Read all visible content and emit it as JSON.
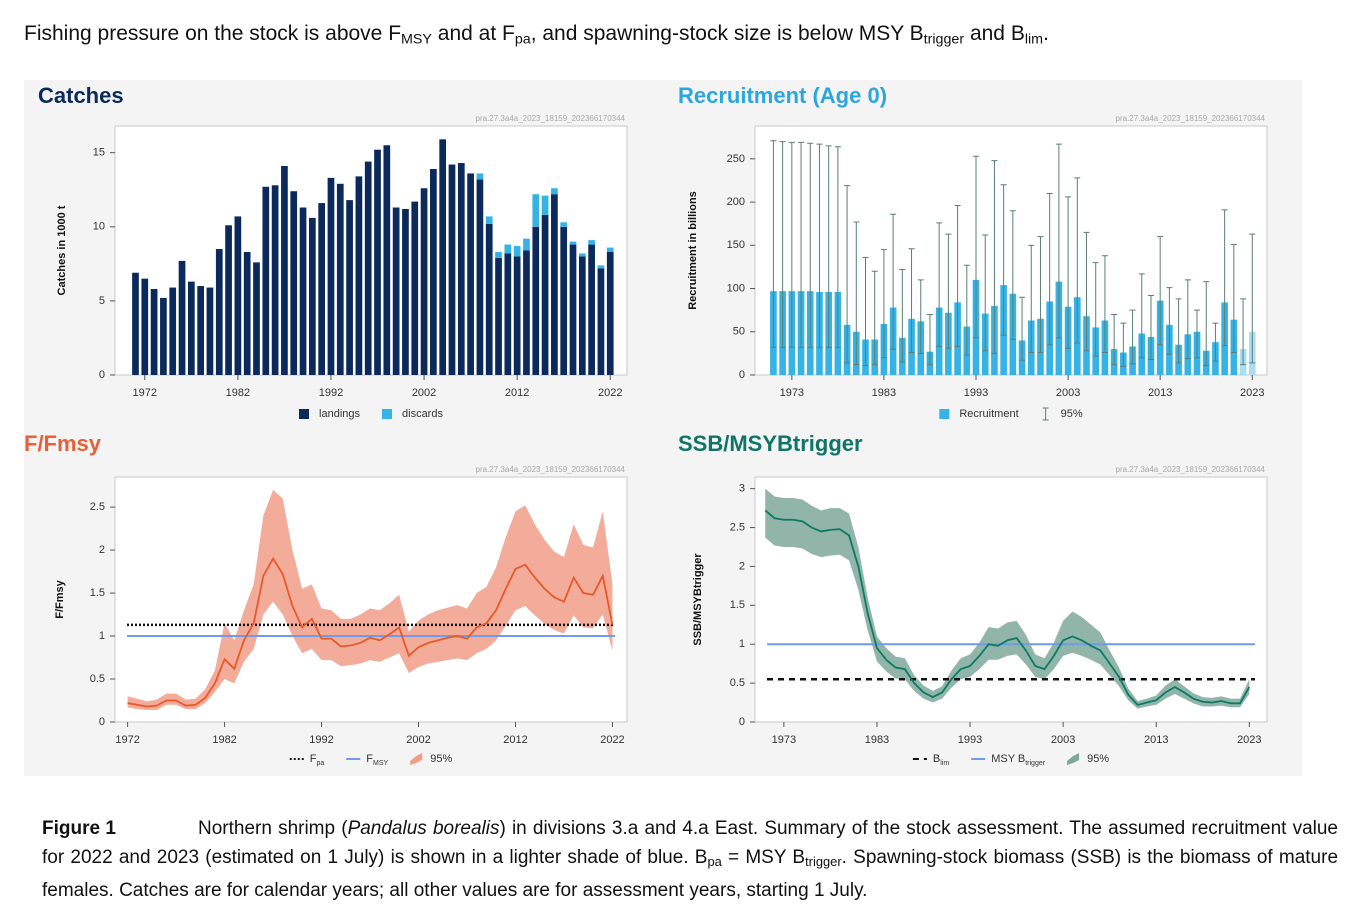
{
  "header": {
    "parts": [
      {
        "text": "Fishing pressure on the stock is above F"
      },
      {
        "text": "MSY",
        "sub": true
      },
      {
        "text": " and at F"
      },
      {
        "text": "pa",
        "sub": true
      },
      {
        "text": ", and spawning-stock size is below MSY B"
      },
      {
        "text": "trigger",
        "sub": true
      },
      {
        "text": " and B"
      },
      {
        "text": "lim",
        "sub": true
      },
      {
        "text": "."
      }
    ]
  },
  "chart_data": [
    {
      "type": "bar",
      "title": "Catches",
      "title_color": "#0b2a5b",
      "watermark": "pra.27.3a4a_2023_18159_202366170344",
      "ylabel": "Catches in 1000 t",
      "x": [
        1971,
        1972,
        1973,
        1974,
        1975,
        1976,
        1977,
        1978,
        1979,
        1980,
        1981,
        1982,
        1983,
        1984,
        1985,
        1986,
        1987,
        1988,
        1989,
        1990,
        1991,
        1992,
        1993,
        1994,
        1995,
        1996,
        1997,
        1998,
        1999,
        2000,
        2001,
        2002,
        2003,
        2004,
        2005,
        2006,
        2007,
        2008,
        2009,
        2010,
        2011,
        2012,
        2013,
        2014,
        2015,
        2016,
        2017,
        2018,
        2019,
        2020,
        2021,
        2022
      ],
      "series": [
        {
          "name": "landings",
          "color": "#0b2a5b",
          "values": [
            6.9,
            6.5,
            5.8,
            5.2,
            5.9,
            7.7,
            6.3,
            6.0,
            5.9,
            8.5,
            10.1,
            10.7,
            8.3,
            7.6,
            12.7,
            12.8,
            14.1,
            12.4,
            11.3,
            10.6,
            11.6,
            13.3,
            12.9,
            11.8,
            13.4,
            14.4,
            15.2,
            15.5,
            11.3,
            11.2,
            11.7,
            12.6,
            13.9,
            15.9,
            14.2,
            14.3,
            13.6,
            13.2,
            10.2,
            7.9,
            8.2,
            8.0,
            8.4,
            10.0,
            10.8,
            12.2,
            10.0,
            8.8,
            8.0,
            8.8,
            7.2,
            8.3
          ]
        },
        {
          "name": "discards",
          "color": "#35b3e6",
          "values": [
            0,
            0,
            0,
            0,
            0,
            0,
            0,
            0,
            0,
            0,
            0,
            0,
            0,
            0,
            0,
            0,
            0,
            0,
            0,
            0,
            0,
            0,
            0,
            0,
            0,
            0,
            0,
            0,
            0,
            0,
            0,
            0,
            0,
            0,
            0,
            0,
            0,
            0.4,
            0.5,
            0.4,
            0.6,
            0.7,
            0.8,
            2.2,
            1.3,
            0.4,
            0.3,
            0.2,
            0.2,
            0.3,
            0.2,
            0.3
          ]
        }
      ],
      "xlim": [
        1968.8,
        2023.8
      ],
      "xticks": [
        1972,
        1982,
        1992,
        2002,
        2012,
        2022
      ],
      "ylim": [
        0,
        16.8
      ],
      "yticks": [
        0,
        5,
        10,
        15
      ]
    },
    {
      "type": "bar",
      "title": "Recruitment (Age 0)",
      "title_color": "#2ba6de",
      "watermark": "pra.27.3a4a_2023_18159_202366170344",
      "ylabel": "Recruitment in billions",
      "x": [
        1971,
        1972,
        1973,
        1974,
        1975,
        1976,
        1977,
        1978,
        1979,
        1980,
        1981,
        1982,
        1983,
        1984,
        1985,
        1986,
        1987,
        1988,
        1989,
        1990,
        1991,
        1992,
        1993,
        1994,
        1995,
        1996,
        1997,
        1998,
        1999,
        2000,
        2001,
        2002,
        2003,
        2004,
        2005,
        2006,
        2007,
        2008,
        2009,
        2010,
        2011,
        2012,
        2013,
        2014,
        2015,
        2016,
        2017,
        2018,
        2019,
        2020,
        2021,
        2022,
        2023
      ],
      "series": [
        {
          "name": "Recruitment",
          "color": "#35b3e6",
          "ci_name": "95%",
          "ci_color": "#5b7f74",
          "point_colors": [
            "#35b3e6",
            "#35b3e6",
            "#35b3e6",
            "#35b3e6",
            "#35b3e6",
            "#35b3e6",
            "#35b3e6",
            "#35b3e6",
            "#35b3e6",
            "#35b3e6",
            "#35b3e6",
            "#35b3e6",
            "#35b3e6",
            "#35b3e6",
            "#35b3e6",
            "#35b3e6",
            "#35b3e6",
            "#35b3e6",
            "#35b3e6",
            "#35b3e6",
            "#35b3e6",
            "#35b3e6",
            "#35b3e6",
            "#35b3e6",
            "#35b3e6",
            "#35b3e6",
            "#35b3e6",
            "#35b3e6",
            "#35b3e6",
            "#35b3e6",
            "#35b3e6",
            "#35b3e6",
            "#35b3e6",
            "#35b3e6",
            "#35b3e6",
            "#35b3e6",
            "#35b3e6",
            "#35b3e6",
            "#35b3e6",
            "#35b3e6",
            "#35b3e6",
            "#35b3e6",
            "#35b3e6",
            "#35b3e6",
            "#35b3e6",
            "#35b3e6",
            "#35b3e6",
            "#35b3e6",
            "#35b3e6",
            "#35b3e6",
            "#35b3e6",
            "#a8ddf4",
            "#a8ddf4"
          ],
          "values": [
            97,
            97,
            97,
            97,
            97,
            96,
            96,
            96,
            58,
            50,
            41,
            41,
            59,
            78,
            43,
            65,
            62,
            27,
            78,
            72,
            84,
            56,
            110,
            71,
            80,
            104,
            94,
            40,
            63,
            65,
            85,
            108,
            79,
            90,
            68,
            55,
            63,
            30,
            26,
            33,
            48,
            44,
            86,
            58,
            35,
            47,
            50,
            28,
            38,
            84,
            64,
            30,
            50
          ],
          "upper": [
            271,
            270,
            269,
            269,
            268,
            267,
            265,
            264,
            219,
            177,
            136,
            120,
            145,
            186,
            122,
            146,
            110,
            70,
            176,
            163,
            196,
            127,
            253,
            162,
            248,
            220,
            190,
            90,
            150,
            160,
            210,
            267,
            206,
            228,
            165,
            130,
            138,
            70,
            60,
            75,
            117,
            92,
            160,
            101,
            88,
            110,
            75,
            108,
            60,
            191,
            151,
            88,
            163
          ],
          "lower": [
            32,
            32,
            32,
            32,
            32,
            32,
            32,
            32,
            14,
            12,
            11,
            12,
            20,
            30,
            15,
            26,
            25,
            12,
            33,
            31,
            33,
            23,
            43,
            28,
            25,
            46,
            41,
            17,
            26,
            26,
            35,
            43,
            31,
            37,
            28,
            22,
            26,
            12,
            10,
            13,
            20,
            18,
            35,
            24,
            14,
            19,
            20,
            11,
            16,
            34,
            26,
            12,
            14
          ]
        }
      ],
      "xlim": [
        1969,
        2024.6
      ],
      "xticks": [
        1973,
        1983,
        1993,
        2003,
        2013,
        2023
      ],
      "ylim": [
        0,
        288
      ],
      "yticks": [
        0,
        50,
        100,
        150,
        200,
        250
      ]
    },
    {
      "type": "line",
      "title": "F/Fmsy",
      "title_color": "#e8603a",
      "watermark": "pra.27.3a4a_2023_18159_202366170344",
      "ylabel": "F/Fmsy",
      "x": [
        1972,
        1973,
        1974,
        1975,
        1976,
        1977,
        1978,
        1979,
        1980,
        1981,
        1982,
        1983,
        1984,
        1985,
        1986,
        1987,
        1988,
        1989,
        1990,
        1991,
        1992,
        1993,
        1994,
        1995,
        1996,
        1997,
        1998,
        1999,
        2000,
        2001,
        2002,
        2003,
        2004,
        2005,
        2006,
        2007,
        2008,
        2009,
        2010,
        2011,
        2012,
        2013,
        2014,
        2015,
        2016,
        2017,
        2018,
        2019,
        2020,
        2021,
        2022
      ],
      "series": [
        {
          "color": "#e8592a",
          "band_name": "95%",
          "band_color": "#f19c88",
          "values": [
            0.22,
            0.2,
            0.18,
            0.19,
            0.25,
            0.25,
            0.19,
            0.2,
            0.28,
            0.45,
            0.73,
            0.62,
            0.95,
            1.15,
            1.7,
            1.9,
            1.72,
            1.35,
            1.1,
            1.2,
            0.97,
            0.97,
            0.88,
            0.89,
            0.92,
            0.98,
            0.95,
            1.02,
            1.1,
            0.77,
            0.87,
            0.92,
            0.95,
            0.98,
            1.0,
            0.97,
            1.1,
            1.15,
            1.3,
            1.55,
            1.78,
            1.83,
            1.68,
            1.55,
            1.45,
            1.4,
            1.68,
            1.5,
            1.48,
            1.7,
            1.13
          ],
          "lower": [
            0.17,
            0.15,
            0.14,
            0.14,
            0.2,
            0.2,
            0.15,
            0.15,
            0.22,
            0.35,
            0.5,
            0.45,
            0.7,
            0.85,
            1.25,
            1.4,
            1.25,
            1.0,
            0.8,
            0.85,
            0.72,
            0.72,
            0.65,
            0.66,
            0.68,
            0.72,
            0.7,
            0.75,
            0.8,
            0.57,
            0.64,
            0.68,
            0.7,
            0.72,
            0.74,
            0.72,
            0.8,
            0.85,
            0.95,
            1.12,
            1.3,
            1.35,
            1.24,
            1.14,
            1.07,
            1.03,
            1.24,
            1.1,
            1.09,
            1.25,
            0.83
          ],
          "upper": [
            0.3,
            0.27,
            0.24,
            0.26,
            0.33,
            0.33,
            0.26,
            0.27,
            0.38,
            0.6,
            1.15,
            0.95,
            1.3,
            1.6,
            2.4,
            2.7,
            2.6,
            2.0,
            1.55,
            1.6,
            1.32,
            1.3,
            1.2,
            1.2,
            1.25,
            1.32,
            1.3,
            1.38,
            1.48,
            1.05,
            1.18,
            1.25,
            1.3,
            1.33,
            1.36,
            1.32,
            1.5,
            1.57,
            1.8,
            2.15,
            2.45,
            2.52,
            2.3,
            2.12,
            1.98,
            1.92,
            2.3,
            2.06,
            2.03,
            2.45,
            1.6
          ]
        }
      ],
      "ref_lines": [
        {
          "name_parts": [
            {
              "text": "F"
            },
            {
              "text": "pa",
              "sub": true
            }
          ],
          "value": 1.13,
          "color": "#111111",
          "dash": "dotted"
        },
        {
          "name_parts": [
            {
              "text": "F"
            },
            {
              "text": "MSY",
              "sub": true
            }
          ],
          "value": 1,
          "color": "#6f9be8",
          "dash": "solid"
        }
      ],
      "xlim": [
        1970.7,
        2023.5
      ],
      "xticks": [
        1972,
        1982,
        1992,
        2002,
        2012,
        2022
      ],
      "ylim": [
        0,
        2.85
      ],
      "yticks": [
        0,
        0.5,
        1,
        1.5,
        2,
        2.5
      ]
    },
    {
      "type": "line",
      "title": "SSB/MSYBtrigger",
      "title_color": "#0f7566",
      "watermark": "pra.27.3a4a_2023_18159_202366170344",
      "ylabel": "SSB/MSYBtrigger",
      "x": [
        1971,
        1972,
        1973,
        1974,
        1975,
        1976,
        1977,
        1978,
        1979,
        1980,
        1981,
        1982,
        1983,
        1984,
        1985,
        1986,
        1987,
        1988,
        1989,
        1990,
        1991,
        1992,
        1993,
        1994,
        1995,
        1996,
        1997,
        1998,
        1999,
        2000,
        2001,
        2002,
        2003,
        2004,
        2005,
        2006,
        2007,
        2008,
        2009,
        2010,
        2011,
        2012,
        2013,
        2014,
        2015,
        2016,
        2017,
        2018,
        2019,
        2020,
        2021,
        2022,
        2023
      ],
      "series": [
        {
          "color": "#0e7a66",
          "band_name": "95%",
          "band_color": "#7ea899",
          "values": [
            2.72,
            2.62,
            2.6,
            2.6,
            2.58,
            2.5,
            2.45,
            2.47,
            2.48,
            2.4,
            2.0,
            1.4,
            0.95,
            0.8,
            0.7,
            0.68,
            0.5,
            0.38,
            0.32,
            0.38,
            0.55,
            0.68,
            0.72,
            0.85,
            1.0,
            0.98,
            1.05,
            1.08,
            0.92,
            0.72,
            0.68,
            0.85,
            1.05,
            1.1,
            1.05,
            0.98,
            0.92,
            0.75,
            0.58,
            0.35,
            0.22,
            0.25,
            0.28,
            0.38,
            0.45,
            0.38,
            0.3,
            0.26,
            0.25,
            0.27,
            0.24,
            0.24,
            0.45
          ],
          "lower": [
            2.37,
            2.27,
            2.25,
            2.25,
            2.23,
            2.16,
            2.12,
            2.14,
            2.15,
            2.08,
            1.7,
            1.18,
            0.78,
            0.65,
            0.56,
            0.55,
            0.4,
            0.3,
            0.25,
            0.3,
            0.44,
            0.55,
            0.58,
            0.68,
            0.8,
            0.8,
            0.85,
            0.87,
            0.74,
            0.58,
            0.55,
            0.68,
            0.85,
            0.89,
            0.85,
            0.8,
            0.74,
            0.6,
            0.46,
            0.28,
            0.17,
            0.2,
            0.22,
            0.3,
            0.36,
            0.3,
            0.24,
            0.2,
            0.2,
            0.21,
            0.19,
            0.19,
            0.36
          ],
          "upper": [
            3.0,
            2.9,
            2.88,
            2.88,
            2.86,
            2.78,
            2.72,
            2.75,
            2.75,
            2.68,
            2.25,
            1.6,
            1.1,
            0.95,
            0.84,
            0.82,
            0.6,
            0.47,
            0.4,
            0.46,
            0.66,
            0.82,
            0.87,
            1.02,
            1.22,
            1.2,
            1.28,
            1.3,
            1.12,
            0.87,
            0.82,
            1.02,
            1.3,
            1.42,
            1.35,
            1.25,
            1.15,
            0.92,
            0.7,
            0.43,
            0.27,
            0.3,
            0.34,
            0.47,
            0.55,
            0.46,
            0.37,
            0.32,
            0.31,
            0.33,
            0.3,
            0.3,
            0.55
          ]
        }
      ],
      "ref_lines": [
        {
          "name_parts": [
            {
              "text": "B"
            },
            {
              "text": "lim",
              "sub": true
            }
          ],
          "value": 0.55,
          "color": "#111111",
          "dash": "dashed"
        },
        {
          "name_parts": [
            {
              "text": "MSY B"
            },
            {
              "text": "trigger",
              "sub": true
            }
          ],
          "value": 1,
          "color": "#6f9be8",
          "dash": "solid"
        }
      ],
      "xlim": [
        1969.9,
        2024.9
      ],
      "xticks": [
        1973,
        1983,
        1993,
        2003,
        2013,
        2023
      ],
      "ylim": [
        0,
        3.15
      ],
      "yticks": [
        0,
        0.5,
        1,
        1.5,
        2,
        2.5,
        3
      ]
    }
  ],
  "caption": {
    "label": "Figure 1",
    "parts": [
      {
        "text": "Northern shrimp ("
      },
      {
        "text": "Pandalus borealis",
        "italic": true
      },
      {
        "text": ") in divisions 3.a and 4.a East. Summary of the stock assessment. The assumed recruitment value for 2022 and 2023 (estimated on 1 July) is shown in a lighter shade of blue. B"
      },
      {
        "text": "pa",
        "sub": true
      },
      {
        "text": " = MSY B"
      },
      {
        "text": "trigger",
        "sub": true
      },
      {
        "text": ". Spawning-stock biomass (SSB) is the biomass of mature females. Catches are for calendar years; all other values are for assessment years, starting 1 July."
      }
    ]
  }
}
